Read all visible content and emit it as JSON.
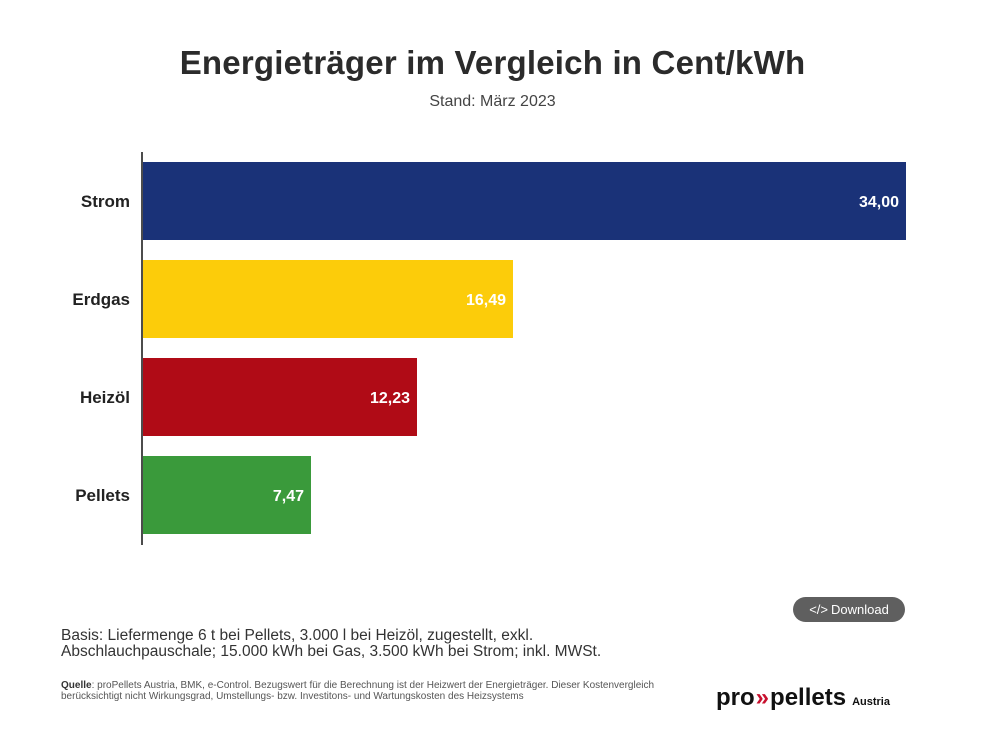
{
  "header": {
    "title": "Energieträger im Vergleich in Cent/kWh",
    "subtitle": "Stand: März 2023"
  },
  "footer": {
    "download_label": "Download",
    "basis": "Basis: Liefermenge 6 t bei Pellets, 3.000 l bei Heizöl, zugestellt, exkl. Abschlauchpauschale; 15.000 kWh bei Gas, 3.500 kWh bei Strom; inkl. MWSt.",
    "source_key": "Quelle",
    "source_text": ": proPellets Austria, BMK, e-Control. Bezugswert für die Berechnung ist der Heizwert der Energieträger. Dieser Kostenvergleich berücksichtigt nicht Wirkungsgrad, Umstellungs- bzw. Investitons- und Wartungskosten des Heizsystems"
  },
  "logo": {
    "pro": "pro",
    "chevrons": "»",
    "pellets": "pellets",
    "region": "Austria"
  },
  "chart_data": {
    "type": "bar",
    "orientation": "horizontal",
    "categories": [
      "Strom",
      "Erdgas",
      "Heizöl",
      "Pellets"
    ],
    "values": [
      34.0,
      16.49,
      12.23,
      7.47
    ],
    "value_labels": [
      "34,00",
      "16,49",
      "12,23",
      "7,47"
    ],
    "colors": [
      "#1a3278",
      "#fccc0a",
      "#b00b16",
      "#3a9a3b"
    ],
    "title": "Energieträger im Vergleich in Cent/kWh",
    "subtitle": "Stand: März 2023",
    "xlim": [
      0,
      34
    ],
    "grid": false,
    "legend": "none"
  }
}
